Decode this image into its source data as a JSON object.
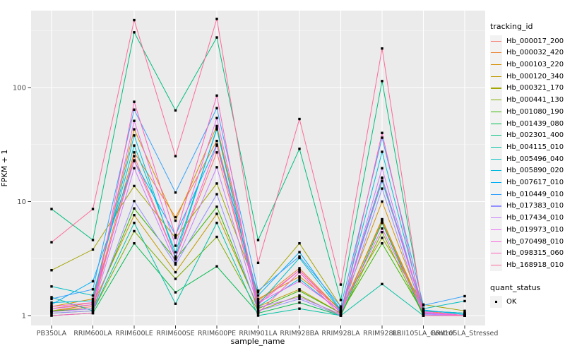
{
  "chart_data": {
    "type": "line",
    "title": "",
    "xlabel": "sample_name",
    "ylabel": "FPKM + 1",
    "yscale": "log10",
    "ylim": [
      0.82,
      470
    ],
    "y_breaks": [
      1,
      10,
      100
    ],
    "y_break_labels": [
      "1",
      "10",
      "100"
    ],
    "y_minor_breaks": [
      3.162,
      31.62,
      316.2
    ],
    "grid": "on",
    "legend_position": "right",
    "categories": [
      "PB350LA",
      "RRIM600LA",
      "RRIM600LE",
      "RRIM600SE",
      "RRIM600PE",
      "RRIM901LA",
      "RRIM928BA",
      "RRIM928LA",
      "RRIM928LE",
      "RRII105LA_Control",
      "RRII105LA_Stressed"
    ],
    "series": [
      {
        "name": "Hb_000017_200",
        "color": "#F8766D",
        "values": [
          1.1,
          1.2,
          25.0,
          3.2,
          27.0,
          1.3,
          2.5,
          1.1,
          6.7,
          1.05,
          1.0
        ]
      },
      {
        "name": "Hb_000032_420",
        "color": "#EA8331",
        "values": [
          1.15,
          1.3,
          27.0,
          7.3,
          34.0,
          1.35,
          2.6,
          1.1,
          6.9,
          1.1,
          1.0
        ]
      },
      {
        "name": "Hb_000103_220",
        "color": "#D89000",
        "values": [
          1.2,
          1.4,
          43.0,
          6.8,
          46.0,
          1.4,
          2.2,
          1.15,
          10.0,
          1.1,
          1.05
        ]
      },
      {
        "name": "Hb_000120_340",
        "color": "#C09B00",
        "values": [
          1.1,
          1.25,
          7.6,
          2.4,
          7.8,
          1.2,
          1.7,
          1.05,
          7.0,
          1.05,
          1.0
        ]
      },
      {
        "name": "Hb_000321_170",
        "color": "#A3A500",
        "values": [
          2.5,
          3.8,
          13.7,
          4.8,
          14.4,
          1.6,
          4.3,
          1.2,
          4.8,
          1.25,
          1.1
        ]
      },
      {
        "name": "Hb_000441_130",
        "color": "#7CAE00",
        "values": [
          1.05,
          1.1,
          5.5,
          2.1,
          4.9,
          1.1,
          1.5,
          1.0,
          5.4,
          1.0,
          1.0
        ]
      },
      {
        "name": "Hb_001080_190",
        "color": "#39B600",
        "values": [
          1.1,
          1.15,
          8.7,
          3.1,
          9.0,
          1.15,
          1.65,
          1.05,
          4.3,
          1.05,
          1.0
        ]
      },
      {
        "name": "Hb_001439_080",
        "color": "#00BB4E",
        "values": [
          1.0,
          1.05,
          4.3,
          1.6,
          2.7,
          1.05,
          1.3,
          1.0,
          6.5,
          1.0,
          1.0
        ]
      },
      {
        "name": "Hb_002301_400",
        "color": "#00BF7D",
        "values": [
          8.6,
          4.6,
          305,
          63.0,
          275,
          4.6,
          29.0,
          1.37,
          114,
          1.1,
          1.05
        ]
      },
      {
        "name": "Hb_004115_010",
        "color": "#00C1A3",
        "values": [
          1.45,
          1.1,
          6.5,
          1.27,
          6.5,
          1.0,
          1.15,
          1.0,
          1.89,
          1.0,
          1.0
        ]
      },
      {
        "name": "Hb_005496_040",
        "color": "#00BFC4",
        "values": [
          1.8,
          1.5,
          31.0,
          3.6,
          43.0,
          1.25,
          3.2,
          1.1,
          15.1,
          1.15,
          1.34
        ]
      },
      {
        "name": "Hb_005890_020",
        "color": "#00BAE0",
        "values": [
          1.3,
          1.35,
          38.0,
          3.3,
          44.0,
          1.2,
          2.1,
          1.08,
          27.3,
          1.1,
          1.05
        ]
      },
      {
        "name": "Hb_007617_010",
        "color": "#00B0F6",
        "values": [
          1.25,
          2.0,
          22.6,
          5.1,
          31.6,
          1.5,
          3.6,
          1.12,
          16.2,
          1.12,
          1.02
        ]
      },
      {
        "name": "Hb_010449_010",
        "color": "#35A2FF",
        "values": [
          1.4,
          1.7,
          64.0,
          12.0,
          66.0,
          1.65,
          3.3,
          1.2,
          36.3,
          1.23,
          1.48
        ]
      },
      {
        "name": "Hb_017383_010",
        "color": "#9590FF",
        "values": [
          1.05,
          1.1,
          10.1,
          2.8,
          11.6,
          1.1,
          1.4,
          1.0,
          13.0,
          1.02,
          1.0
        ]
      },
      {
        "name": "Hb_017434_010",
        "color": "#C77CFF",
        "values": [
          1.08,
          1.15,
          19.6,
          2.9,
          20.0,
          1.18,
          1.45,
          1.03,
          19.6,
          1.04,
          1.0
        ]
      },
      {
        "name": "Hb_019973_010",
        "color": "#E76BF3",
        "values": [
          1.15,
          1.25,
          51.0,
          4.1,
          54.0,
          1.3,
          2.0,
          1.1,
          5.8,
          1.08,
          1.0
        ]
      },
      {
        "name": "Hb_070498_010",
        "color": "#FA62DB",
        "values": [
          1.2,
          1.3,
          23.0,
          3.2,
          31.0,
          1.25,
          2.5,
          1.05,
          16.0,
          1.06,
          1.0
        ]
      },
      {
        "name": "Hb_098315_060",
        "color": "#FF62BC",
        "values": [
          1.0,
          1.05,
          75.0,
          5.0,
          85.0,
          1.05,
          2.4,
          1.0,
          40.0,
          1.0,
          1.0
        ]
      },
      {
        "name": "Hb_168918_010",
        "color": "#FF6A98",
        "values": [
          4.4,
          8.6,
          390,
          25.0,
          400,
          2.9,
          53.0,
          1.87,
          220,
          1.0,
          1.0
        ]
      }
    ],
    "style": {
      "panel_bg": "#EBEBEB",
      "grid_major": "#FFFFFF",
      "grid_minor": "#F7F7F7",
      "tick_color": "#333333",
      "tick_label_color": "#4D4D4D",
      "point_color": "#000000",
      "legend_key_bg": "#F2F2F2"
    }
  },
  "legend": {
    "tracking_title": "tracking_id",
    "quant_title": "quant_status",
    "quant_entries": [
      {
        "label": "OK",
        "marker": "black-square"
      }
    ]
  },
  "axes": {
    "x_title": "sample_name",
    "y_title": "FPKM + 1"
  }
}
